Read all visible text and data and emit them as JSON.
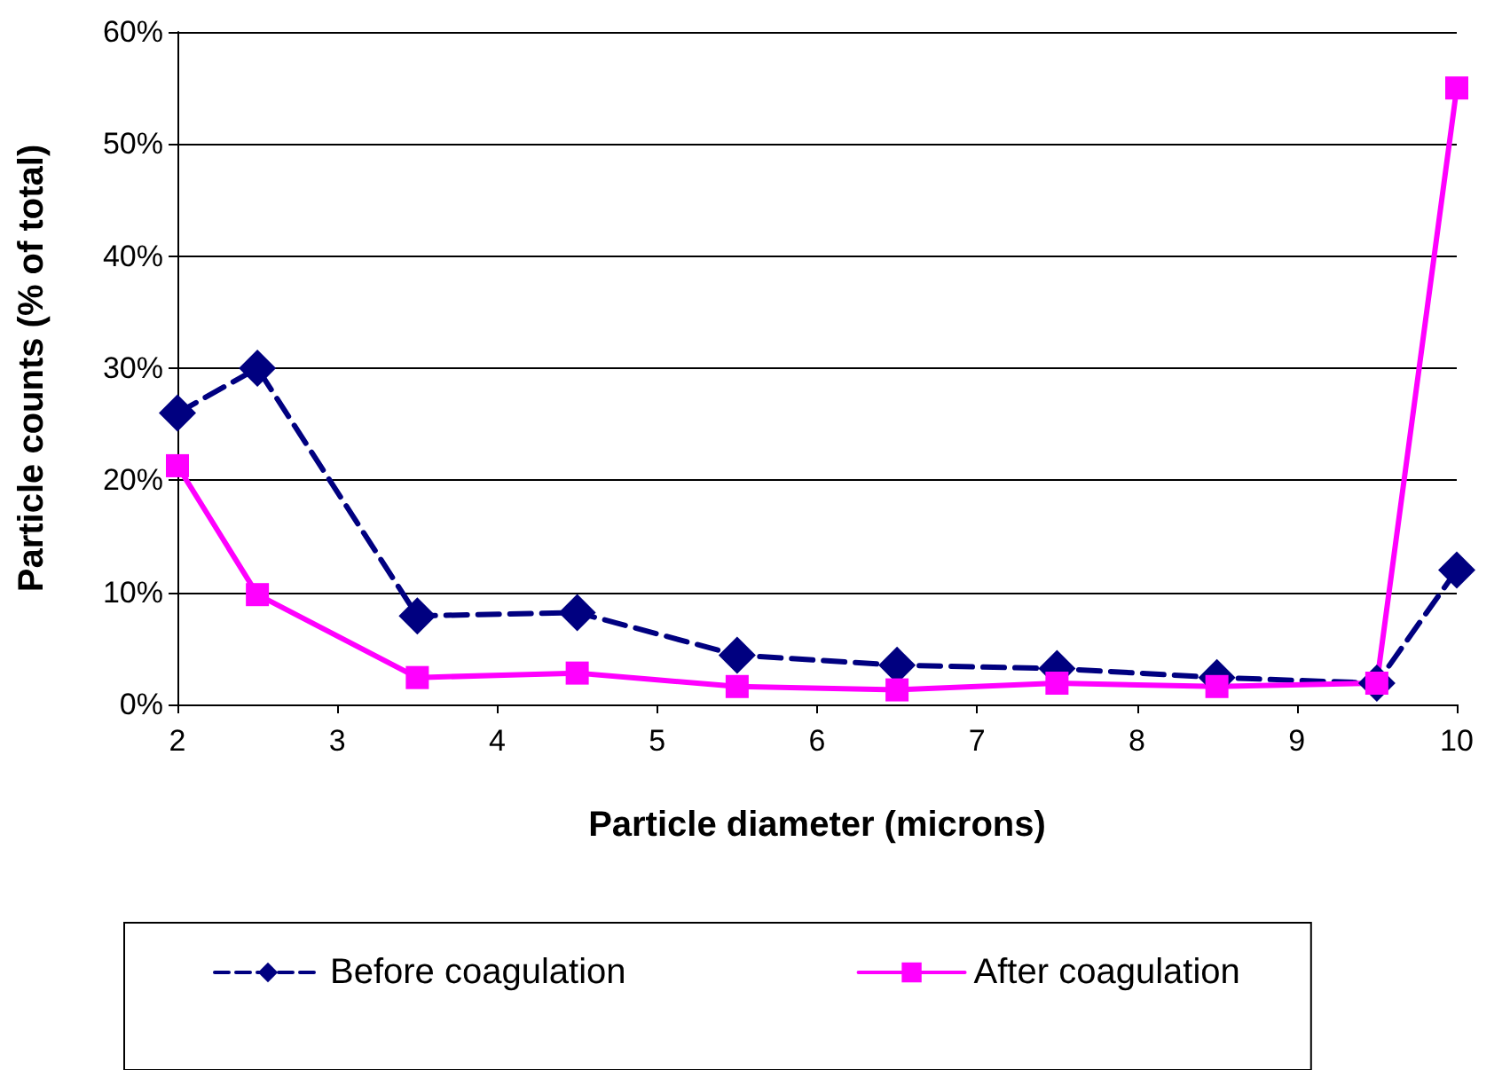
{
  "chart_data": {
    "type": "line",
    "xlabel": "Particle diameter (microns)",
    "ylabel": "Particle counts (% of total)",
    "x": [
      2,
      2.5,
      3.5,
      4.5,
      5.5,
      6.5,
      7.5,
      8.5,
      9.5,
      10
    ],
    "series": [
      {
        "name": "Before coagulation",
        "color": "#000080",
        "marker": "diamond",
        "line_style": "dashed",
        "values": [
          26,
          30,
          7.9,
          8.2,
          4.4,
          3.5,
          3.2,
          2.4,
          1.9,
          12
        ]
      },
      {
        "name": "After coagulation",
        "color": "#ff00ff",
        "marker": "square",
        "line_style": "solid",
        "values": [
          21.3,
          9.8,
          2.4,
          2.8,
          1.6,
          1.3,
          1.9,
          1.6,
          1.9,
          55
        ]
      }
    ],
    "xlim": [
      2,
      10
    ],
    "xticks": [
      2,
      3,
      4,
      5,
      6,
      7,
      8,
      9,
      10
    ],
    "ylim": [
      0,
      60
    ],
    "yticks": [
      {
        "value": 0,
        "label": "0%"
      },
      {
        "value": 10,
        "label": "10%"
      },
      {
        "value": 20,
        "label": "20%"
      },
      {
        "value": 30,
        "label": "30%"
      },
      {
        "value": 40,
        "label": "40%"
      },
      {
        "value": 50,
        "label": "50%"
      },
      {
        "value": 60,
        "label": "60%"
      }
    ],
    "grid": "y",
    "legend": "bottom"
  }
}
